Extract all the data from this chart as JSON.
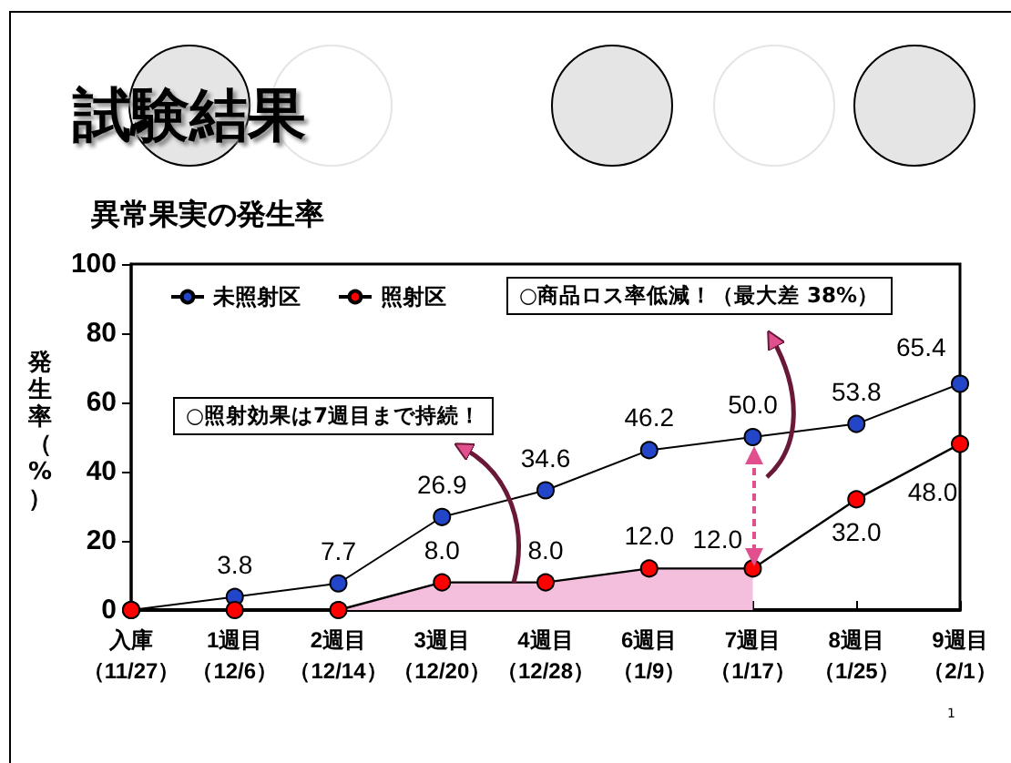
{
  "chart_data": {
    "type": "line",
    "title": "試験結果",
    "subtitle": "異常果実の発生率",
    "ylabel": "発生率（%）",
    "categories": [
      "入庫（11/27）",
      "1週目（12/6）",
      "2週目（12/14）",
      "3週目（12/20）",
      "4週目（12/28）",
      "6週目（1/9）",
      "7週目（1/17）",
      "8週目（1/25）",
      "9週目（2/1）"
    ],
    "series": [
      {
        "name": "未照射区",
        "color": "#2346c8",
        "values": [
          0,
          3.8,
          7.7,
          26.9,
          34.6,
          46.2,
          50.0,
          53.8,
          65.4
        ],
        "value_labels": [
          null,
          "3.8",
          "7.7",
          "26.9",
          "34.6",
          "46.2",
          "50.0",
          "53.8",
          "65.4"
        ]
      },
      {
        "name": "照射区",
        "color": "#ff0000",
        "values": [
          0,
          0,
          0,
          8.0,
          8.0,
          12.0,
          12.0,
          32.0,
          48.0
        ],
        "value_labels": [
          null,
          null,
          null,
          "8.0",
          "8.0",
          "12.0",
          "12.0",
          "32.0",
          "48.0"
        ]
      },
      {
        "type": "area",
        "marker": "none",
        "color": "#f4bfdc",
        "values": [
          null,
          null,
          0,
          8.0,
          8.0,
          12.0,
          12.0,
          null,
          null
        ]
      }
    ],
    "ylim": [
      0,
      100
    ],
    "yticks": [
      0,
      20,
      40,
      60,
      80,
      100
    ],
    "grid": false,
    "legend": "top left",
    "marker": "circle",
    "line_style": "solid",
    "annotations": [
      "○照射効果は7週目まで持続！",
      "○商品ロス率低減！（最大差 38%）",
      "1"
    ]
  }
}
